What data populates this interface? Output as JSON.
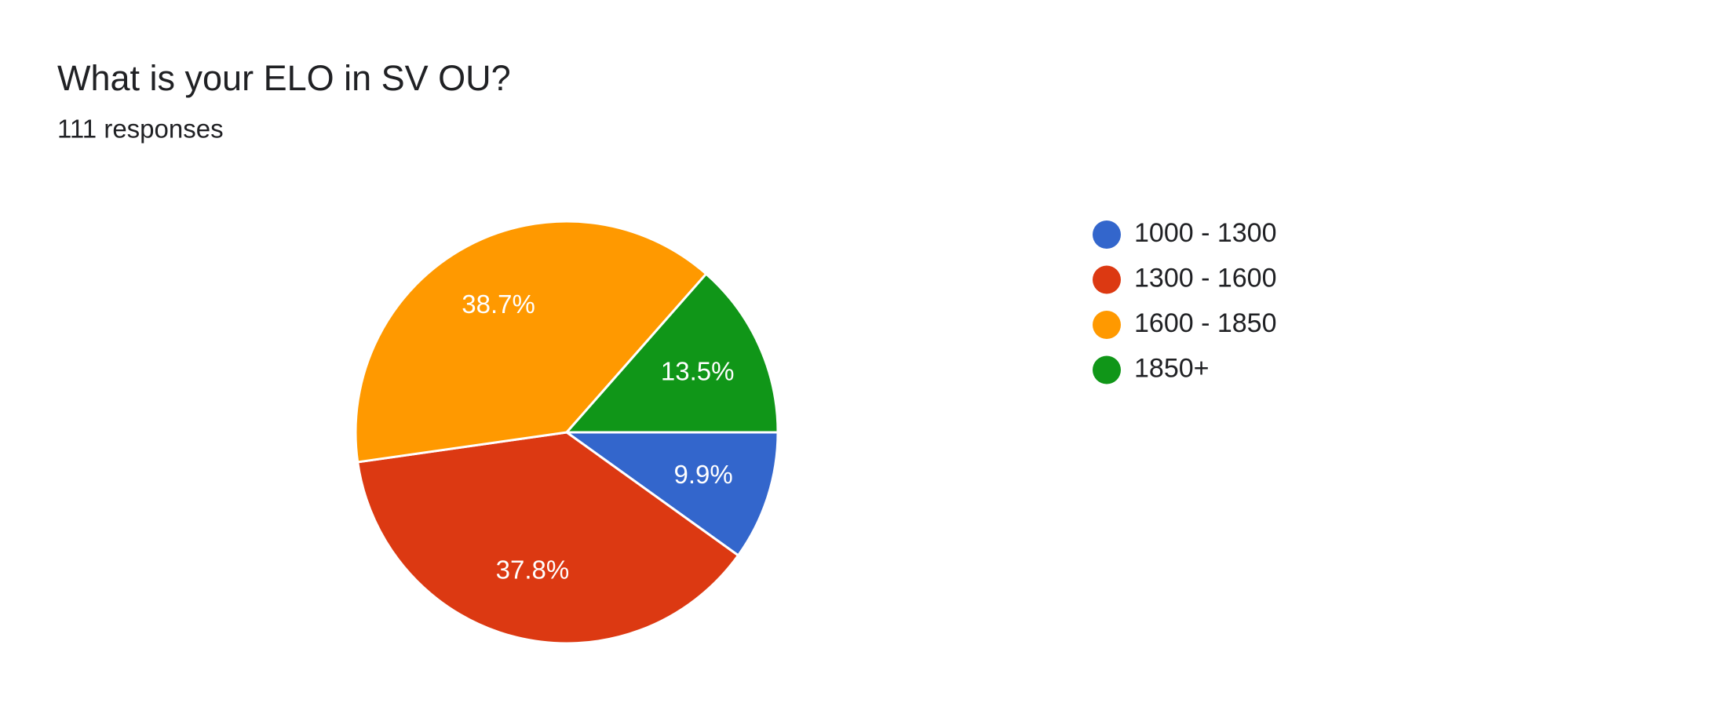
{
  "chart_data": {
    "type": "pie",
    "title": "What is your ELO in SV OU?",
    "subtitle": "111 responses",
    "categories": [
      "1000 - 1300",
      "1300 - 1600",
      "1600 - 1850",
      "1850+"
    ],
    "values": [
      9.9,
      37.8,
      38.7,
      13.5
    ],
    "value_labels": [
      "9.9%",
      "37.8%",
      "38.7%",
      "13.5%"
    ],
    "colors": [
      "#3366cc",
      "#dc3912",
      "#ff9900",
      "#109618"
    ],
    "legend": "right"
  }
}
